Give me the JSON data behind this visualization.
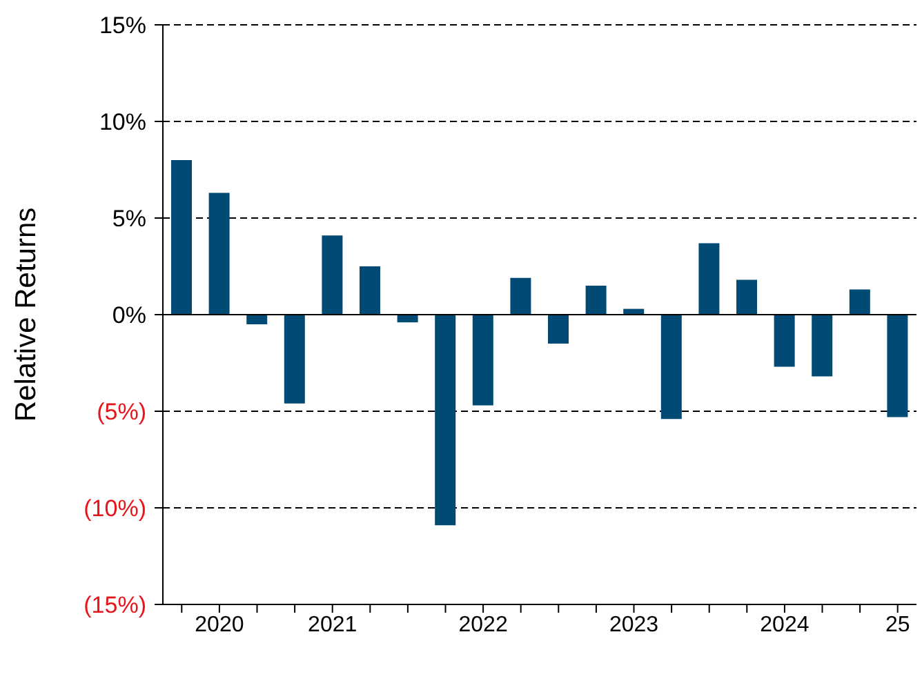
{
  "chart_data": {
    "type": "bar",
    "ylabel": "Relative Returns",
    "categories": [
      null,
      "2020",
      null,
      null,
      "2021",
      null,
      null,
      null,
      "2022",
      null,
      null,
      null,
      "2023",
      null,
      null,
      null,
      "2024",
      null,
      null,
      "25"
    ],
    "series": [
      {
        "color": "#004a73",
        "values": [
          8.0,
          6.3,
          -0.5,
          -4.6,
          4.1,
          2.5,
          -0.4,
          -10.9,
          -4.7,
          1.9,
          -1.5,
          1.5,
          0.3,
          -5.4,
          3.7,
          1.8,
          -2.7,
          -3.2,
          1.3,
          -5.3
        ]
      }
    ],
    "ylim": [
      -15,
      15
    ],
    "yticks": [
      {
        "value": -15,
        "label": "(15%)"
      },
      {
        "value": -10,
        "label": "(10%)"
      },
      {
        "value": -5,
        "label": "(5%)"
      },
      {
        "value": 0,
        "label": "0%"
      },
      {
        "value": 5,
        "label": "5%"
      },
      {
        "value": 10,
        "label": "10%"
      },
      {
        "value": 15,
        "label": "15%"
      }
    ],
    "grid": "y"
  }
}
